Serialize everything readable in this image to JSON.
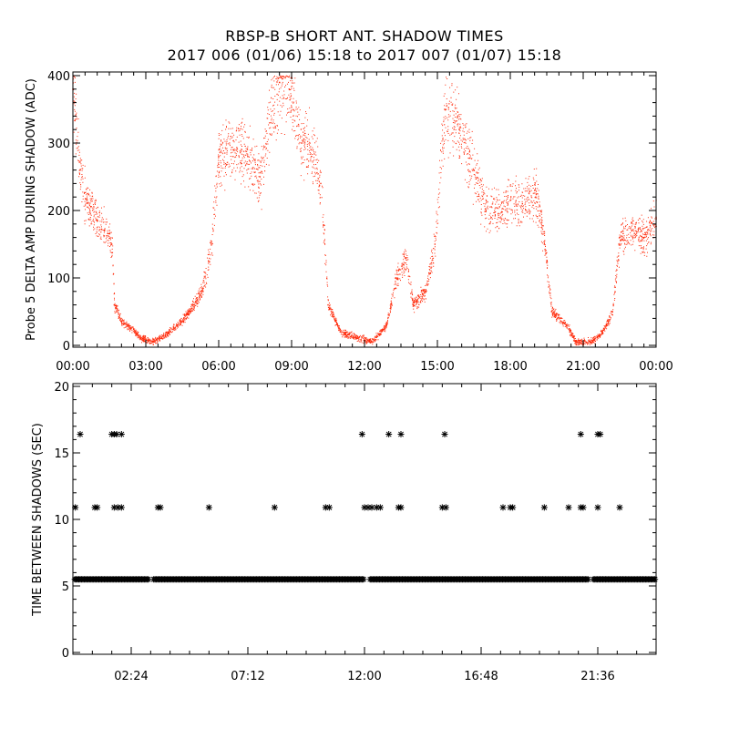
{
  "title": "RBSP-B SHORT ANT. SHADOW TIMES",
  "subtitle": "2017 006 (01/06) 15:18 to 2017 007 (01/07) 15:18",
  "chart_data": [
    {
      "type": "scatter",
      "ylabel": "Probe 5 DELTA AMP DURING SHADOW (ADC)",
      "xlabel": "",
      "xlim": [
        0,
        24
      ],
      "ylim": [
        0,
        400
      ],
      "x_ticklabels": [
        "00:00",
        "03:00",
        "06:00",
        "09:00",
        "12:00",
        "15:00",
        "18:00",
        "21:00",
        "00:00"
      ],
      "y_ticklabels": [
        "0",
        "100",
        "200",
        "300",
        "400"
      ],
      "color": "#ff2a0a",
      "trend": [
        {
          "x": 0.0,
          "y": 380
        },
        {
          "x": 0.3,
          "y": 260
        },
        {
          "x": 0.6,
          "y": 205
        },
        {
          "x": 1.0,
          "y": 185
        },
        {
          "x": 1.3,
          "y": 170
        },
        {
          "x": 1.6,
          "y": 150
        },
        {
          "x": 1.7,
          "y": 60
        },
        {
          "x": 2.0,
          "y": 35
        },
        {
          "x": 2.4,
          "y": 25
        },
        {
          "x": 2.8,
          "y": 10
        },
        {
          "x": 3.3,
          "y": 5
        },
        {
          "x": 3.8,
          "y": 15
        },
        {
          "x": 4.3,
          "y": 30
        },
        {
          "x": 4.8,
          "y": 50
        },
        {
          "x": 5.3,
          "y": 80
        },
        {
          "x": 5.7,
          "y": 150
        },
        {
          "x": 6.0,
          "y": 280
        },
        {
          "x": 6.6,
          "y": 290
        },
        {
          "x": 7.2,
          "y": 280
        },
        {
          "x": 7.7,
          "y": 250
        },
        {
          "x": 8.1,
          "y": 330
        },
        {
          "x": 8.5,
          "y": 390
        },
        {
          "x": 8.9,
          "y": 380
        },
        {
          "x": 9.4,
          "y": 300
        },
        {
          "x": 9.8,
          "y": 290
        },
        {
          "x": 10.2,
          "y": 240
        },
        {
          "x": 10.5,
          "y": 60
        },
        {
          "x": 11.0,
          "y": 20
        },
        {
          "x": 11.6,
          "y": 12
        },
        {
          "x": 12.3,
          "y": 5
        },
        {
          "x": 12.9,
          "y": 30
        },
        {
          "x": 13.3,
          "y": 100
        },
        {
          "x": 13.7,
          "y": 130
        },
        {
          "x": 14.0,
          "y": 60
        },
        {
          "x": 14.5,
          "y": 80
        },
        {
          "x": 14.9,
          "y": 150
        },
        {
          "x": 15.3,
          "y": 350
        },
        {
          "x": 15.9,
          "y": 320
        },
        {
          "x": 16.5,
          "y": 260
        },
        {
          "x": 17.0,
          "y": 200
        },
        {
          "x": 17.5,
          "y": 195
        },
        {
          "x": 18.0,
          "y": 215
        },
        {
          "x": 18.5,
          "y": 210
        },
        {
          "x": 19.0,
          "y": 230
        },
        {
          "x": 19.4,
          "y": 150
        },
        {
          "x": 19.7,
          "y": 50
        },
        {
          "x": 20.3,
          "y": 30
        },
        {
          "x": 20.7,
          "y": 5
        },
        {
          "x": 21.3,
          "y": 5
        },
        {
          "x": 21.8,
          "y": 20
        },
        {
          "x": 22.2,
          "y": 50
        },
        {
          "x": 22.5,
          "y": 160
        },
        {
          "x": 23.0,
          "y": 170
        },
        {
          "x": 23.5,
          "y": 160
        },
        {
          "x": 24.0,
          "y": 190
        }
      ]
    },
    {
      "type": "scatter",
      "ylabel": "TIME BETWEEN SHADOWS (SEC)",
      "xlabel": "",
      "xlim": [
        0,
        24
      ],
      "ylim": [
        0,
        20
      ],
      "x_ticklabels": [
        "02:24",
        "07:12",
        "12:00",
        "16:48",
        "21:36"
      ],
      "y_ticklabels": [
        "0",
        "5",
        "10",
        "15",
        "20"
      ],
      "color": "#000000",
      "base_level": 5.5,
      "base_gaps": [
        3.2,
        12.1,
        21.3
      ],
      "points": [
        {
          "x": 0.1,
          "y": 10.9
        },
        {
          "x": 0.3,
          "y": 16.4
        },
        {
          "x": 0.9,
          "y": 10.9
        },
        {
          "x": 1.0,
          "y": 10.9
        },
        {
          "x": 1.6,
          "y": 16.4
        },
        {
          "x": 1.7,
          "y": 16.4
        },
        {
          "x": 1.8,
          "y": 16.4
        },
        {
          "x": 2.0,
          "y": 16.4
        },
        {
          "x": 1.7,
          "y": 10.9
        },
        {
          "x": 1.85,
          "y": 10.9
        },
        {
          "x": 2.0,
          "y": 10.9
        },
        {
          "x": 3.5,
          "y": 10.9
        },
        {
          "x": 3.6,
          "y": 10.9
        },
        {
          "x": 5.6,
          "y": 10.9
        },
        {
          "x": 8.3,
          "y": 10.9
        },
        {
          "x": 10.4,
          "y": 10.9
        },
        {
          "x": 10.55,
          "y": 10.9
        },
        {
          "x": 11.9,
          "y": 16.4
        },
        {
          "x": 12.0,
          "y": 10.9
        },
        {
          "x": 12.15,
          "y": 10.9
        },
        {
          "x": 12.3,
          "y": 10.9
        },
        {
          "x": 12.5,
          "y": 10.9
        },
        {
          "x": 12.65,
          "y": 10.9
        },
        {
          "x": 13.0,
          "y": 16.4
        },
        {
          "x": 13.4,
          "y": 10.9
        },
        {
          "x": 13.5,
          "y": 10.9
        },
        {
          "x": 13.5,
          "y": 16.4
        },
        {
          "x": 15.3,
          "y": 16.4
        },
        {
          "x": 15.2,
          "y": 10.9
        },
        {
          "x": 15.35,
          "y": 10.9
        },
        {
          "x": 17.7,
          "y": 10.9
        },
        {
          "x": 18.0,
          "y": 10.9
        },
        {
          "x": 18.1,
          "y": 10.9
        },
        {
          "x": 19.4,
          "y": 10.9
        },
        {
          "x": 20.4,
          "y": 10.9
        },
        {
          "x": 20.9,
          "y": 10.9
        },
        {
          "x": 21.0,
          "y": 10.9
        },
        {
          "x": 20.9,
          "y": 16.4
        },
        {
          "x": 21.6,
          "y": 16.4
        },
        {
          "x": 21.7,
          "y": 16.4
        },
        {
          "x": 21.6,
          "y": 10.9
        },
        {
          "x": 22.5,
          "y": 10.9
        }
      ]
    }
  ]
}
